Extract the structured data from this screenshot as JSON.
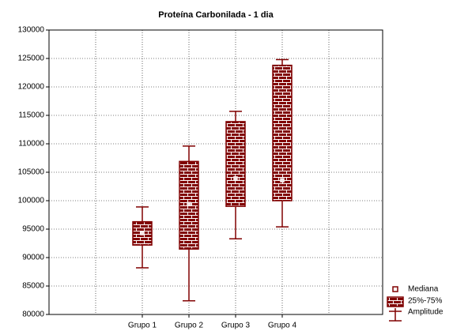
{
  "chart_data": {
    "type": "box",
    "title": "Proteína Carbonilada - 1 dia",
    "categories": [
      "Grupo 1",
      "Grupo 2",
      "Grupo 3",
      "Grupo 4"
    ],
    "boxes": [
      {
        "min": 88200,
        "q1": 92200,
        "median": 94300,
        "q3": 96300,
        "max": 98900
      },
      {
        "min": 82400,
        "q1": 91500,
        "median": 99400,
        "q3": 106900,
        "max": 109600
      },
      {
        "min": 93300,
        "q1": 99000,
        "median": 103900,
        "q3": 113900,
        "max": 115700
      },
      {
        "min": 95400,
        "q1": 100000,
        "median": 103600,
        "q3": 123800,
        "max": 124800
      }
    ],
    "color": "#800000",
    "legend": {
      "median": "Mediana",
      "box": "25%-75%",
      "whisker": "Amplitude"
    },
    "legend_position": "lower right",
    "ylim": [
      80000,
      130000
    ],
    "yticks": [
      80000,
      85000,
      90000,
      95000,
      100000,
      105000,
      110000,
      115000,
      120000,
      125000,
      130000
    ],
    "grid": true
  }
}
